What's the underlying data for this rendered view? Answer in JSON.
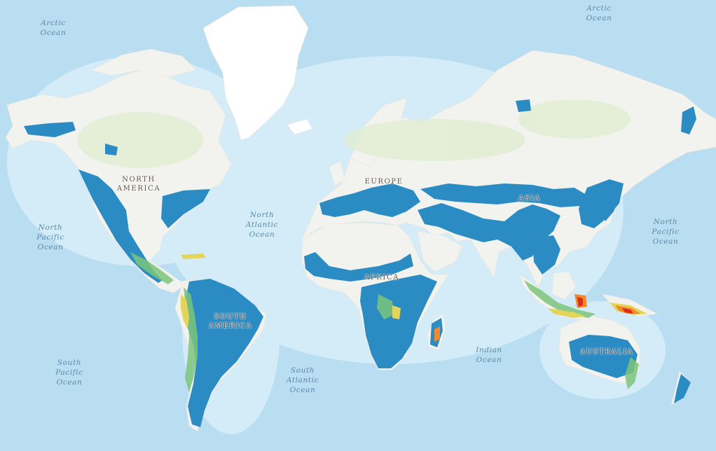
{
  "map": {
    "colors": {
      "ocean": "#b9def2",
      "deep_ocean": "#a6d3ee",
      "shelf": "#d3ecf8",
      "land": "#f2f2ee",
      "vegetation": "#e1eed2",
      "ice": "#ffffff",
      "class_blue": "#2b8cc4",
      "class_green": "#7cc47a",
      "class_yellow": "#e3d45a",
      "class_orange": "#f08a2c",
      "class_red": "#e02a1f"
    },
    "ocean_labels": [
      {
        "id": "arctic-ocean-west",
        "text": "Arctic\nOcean"
      },
      {
        "id": "arctic-ocean-east",
        "text": "Arctic\nOcean"
      },
      {
        "id": "north-pacific-ocean-west",
        "text": "North\nPacific\nOcean"
      },
      {
        "id": "north-atlantic-ocean",
        "text": "North\nAtlantic\nOcean"
      },
      {
        "id": "north-pacific-ocean-east",
        "text": "North\nPacific\nOcean"
      },
      {
        "id": "south-pacific-ocean",
        "text": "South\nPacific\nOcean"
      },
      {
        "id": "south-atlantic-ocean",
        "text": "South\nAtlantic\nOcean"
      },
      {
        "id": "indian-ocean",
        "text": "Indian\nOcean"
      }
    ],
    "continent_labels": [
      {
        "id": "north-america",
        "text": "NORTH\nAMERICA"
      },
      {
        "id": "europe",
        "text": "EUROPE"
      },
      {
        "id": "asia",
        "text": "ASIA"
      },
      {
        "id": "africa",
        "text": "AFRICA"
      },
      {
        "id": "south-america",
        "text": "SOUTH\nAMERICA"
      },
      {
        "id": "australia",
        "text": "AUSTRALIA"
      }
    ]
  }
}
